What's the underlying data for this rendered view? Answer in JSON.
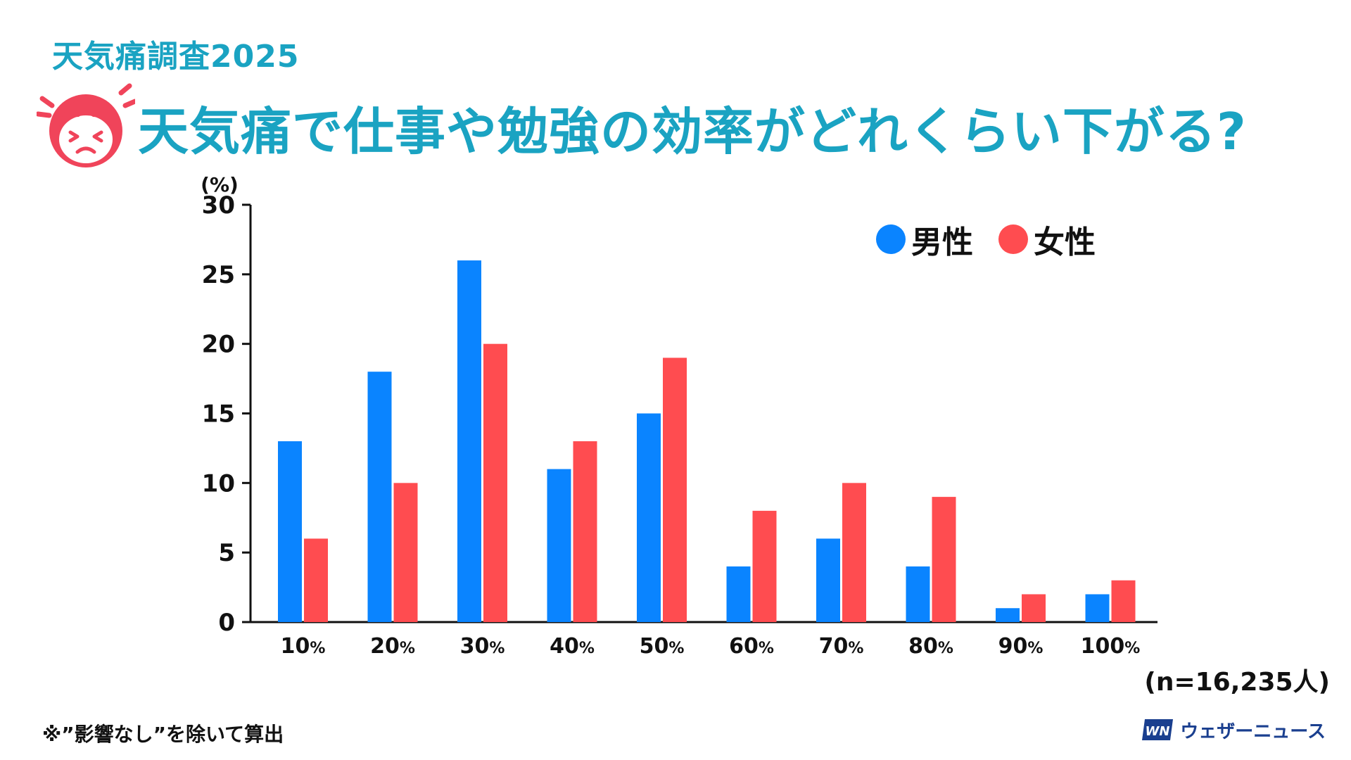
{
  "header": {
    "subtitle": "天気痛調査2025",
    "title": "天気痛で仕事や勉強の効率がどれくらい下がる?"
  },
  "colors": {
    "accent": "#1aa3c2",
    "face": "#f0445a",
    "male": "#0a84ff",
    "female": "#ff4c50"
  },
  "icons": {
    "header_icon": "distressed-face-icon",
    "brand_logo": "wni-logo-icon"
  },
  "chart_data": {
    "type": "bar",
    "unit_label": "(%)",
    "categories": [
      "10",
      "20",
      "30",
      "40",
      "50",
      "60",
      "70",
      "80",
      "90",
      "100"
    ],
    "category_suffix": "%",
    "series": [
      {
        "name": "男性",
        "values": [
          13,
          18,
          26,
          11,
          15,
          4,
          6,
          4,
          1,
          2
        ]
      },
      {
        "name": "女性",
        "values": [
          6,
          10,
          20,
          13,
          19,
          8,
          10,
          9,
          2,
          3
        ]
      }
    ],
    "ylim": [
      0,
      30
    ],
    "yticks": [
      0,
      5,
      10,
      15,
      20,
      25,
      30
    ],
    "grid": false,
    "legend_position": "top-right"
  },
  "legend": {
    "male": "男性",
    "female": "女性"
  },
  "sample_size": "(n=16,235人)",
  "footnote": "※”影響なし”を除いて算出",
  "brand": {
    "name": "ウェザーニュース",
    "logo_text": "WN"
  }
}
